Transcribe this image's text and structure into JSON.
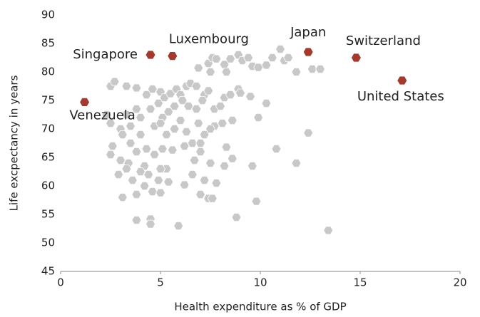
{
  "chart_data": {
    "type": "scatter",
    "xlabel": "Health expenditure as % of GDP",
    "ylabel": "Life excpectancy in years",
    "xlim": [
      0,
      20
    ],
    "xticks": [
      0,
      5,
      10,
      15,
      20
    ],
    "ylim": [
      45,
      90
    ],
    "yticks": [
      45,
      50,
      55,
      60,
      65,
      70,
      75,
      80,
      85,
      90
    ],
    "points": {
      "color": "#c8c8c8",
      "x": [
        2.5,
        2.7,
        3.3,
        3.8,
        4.3,
        4.6,
        5,
        5.2,
        5.5,
        5.8,
        6,
        6.3,
        6.5,
        6.8,
        7.2,
        7.5,
        7.4,
        7.6,
        7.8,
        8.2,
        8.3,
        8.5,
        8.9,
        9.1,
        9.4,
        9.6,
        9.9,
        10.3,
        10.6,
        11,
        11.2,
        11.4,
        11.8,
        12.6,
        13,
        6.9,
        2.3,
        3,
        3.3,
        3.5,
        3.8,
        4,
        4.5,
        4.9,
        5.1,
        5.4,
        5.7,
        6.1,
        6.4,
        6.8,
        7.1,
        7.4,
        7.7,
        8,
        8.2,
        8.5,
        8.9,
        9,
        9.5,
        10.3,
        9.9,
        3.1,
        3.5,
        4,
        4.3,
        4.7,
        5,
        5.3,
        5.7,
        6,
        6.3,
        6.6,
        6.9,
        7.2,
        7.7,
        8.1,
        8.6,
        2.5,
        2.6,
        3,
        3.4,
        3.8,
        4.2,
        4.7,
        5.1,
        5.6,
        6.2,
        6.7,
        7,
        7.0,
        7.5,
        8.6,
        10.8,
        12.4,
        11.8,
        2.9,
        3.3,
        3.6,
        4,
        4.4,
        4.9,
        5.3,
        5.4,
        6.2,
        6.6,
        7.2,
        7.5,
        8.2,
        7.8,
        9.6,
        3.1,
        3.8,
        4.2,
        4.6,
        5,
        7,
        7.4,
        7.6,
        9.8,
        8.8,
        3.8,
        4.5,
        4.5,
        5.9,
        13.4,
        2.5,
        5.0,
        8.3
      ],
      "y": [
        77.5,
        78.3,
        77.5,
        77.2,
        76,
        77,
        76.5,
        75.5,
        76.2,
        77,
        76,
        77.5,
        78,
        77.5,
        76,
        80,
        81.5,
        82.5,
        82.3,
        81.3,
        80,
        82.3,
        83,
        82,
        82.5,
        81,
        80.8,
        81.2,
        82.5,
        84,
        82,
        82.5,
        80,
        80.5,
        80.5,
        80.7,
        72.5,
        70,
        72.5,
        70.5,
        73.5,
        72,
        73.5,
        74.5,
        72,
        73,
        74,
        75,
        74,
        73.5,
        75,
        76.7,
        73.5,
        74,
        75.5,
        76,
        77,
        76.3,
        75.7,
        74.5,
        72,
        69,
        67.5,
        69,
        66.5,
        70.5,
        71,
        69,
        70,
        71.5,
        69.5,
        67.5,
        71,
        69,
        70.5,
        71,
        71.5,
        65.5,
        67,
        64.5,
        64,
        66,
        63.5,
        65.5,
        66.5,
        66.3,
        67,
        64.5,
        66,
        67.5,
        70,
        64.8,
        66.5,
        69.3,
        64,
        62,
        63,
        61,
        62.5,
        62,
        61,
        63,
        60.7,
        60.2,
        62,
        61,
        64,
        63.5,
        60.5,
        63.5,
        58,
        58.5,
        60,
        59,
        58.8,
        58.5,
        57.8,
        57.8,
        57.3,
        54.5,
        54,
        54.2,
        53.3,
        53,
        52.2,
        71,
        63,
        66.8
      ]
    },
    "highlighted": {
      "color": "#a33a2e",
      "labels": [
        "Singapore",
        "Luxembourg",
        "Japan",
        "Switzerland",
        "United States",
        "Venezuela"
      ],
      "x": [
        4.5,
        5.6,
        12.4,
        14.8,
        17.1,
        1.2
      ],
      "y": [
        83,
        82.8,
        83.5,
        82.5,
        78.5,
        74.7
      ]
    }
  }
}
